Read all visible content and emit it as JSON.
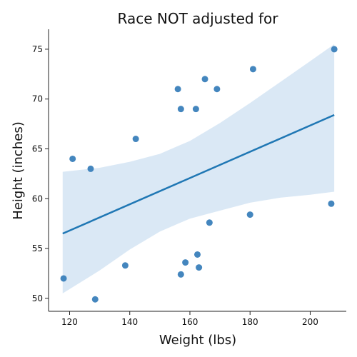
{
  "chart_data": {
    "type": "scatter",
    "title": "Race NOT adjusted for",
    "xlabel": "Weight (lbs)",
    "ylabel": "Height (inches)",
    "xlim": [
      113,
      212
    ],
    "ylim": [
      48.7,
      77
    ],
    "xticks": [
      120,
      140,
      160,
      180,
      200
    ],
    "yticks": [
      50,
      55,
      60,
      65,
      70,
      75
    ],
    "grid": false,
    "colors": {
      "points": "#3a7fba",
      "line": "#1f77b4",
      "band": "#c6dbef"
    },
    "points": [
      {
        "x": 118,
        "y": 52
      },
      {
        "x": 121,
        "y": 64
      },
      {
        "x": 127,
        "y": 63
      },
      {
        "x": 128.5,
        "y": 49.9
      },
      {
        "x": 138.5,
        "y": 53.3
      },
      {
        "x": 142,
        "y": 66
      },
      {
        "x": 156,
        "y": 71
      },
      {
        "x": 157,
        "y": 69
      },
      {
        "x": 157,
        "y": 52.4
      },
      {
        "x": 158.5,
        "y": 53.6
      },
      {
        "x": 162,
        "y": 69
      },
      {
        "x": 162.5,
        "y": 54.4
      },
      {
        "x": 163,
        "y": 53.1
      },
      {
        "x": 165,
        "y": 72
      },
      {
        "x": 166.5,
        "y": 57.6
      },
      {
        "x": 169,
        "y": 71
      },
      {
        "x": 180,
        "y": 58.4
      },
      {
        "x": 181,
        "y": 73
      },
      {
        "x": 207,
        "y": 59.5
      },
      {
        "x": 208,
        "y": 75
      }
    ],
    "regression": {
      "x": [
        117.7,
        208
      ],
      "y": [
        56.5,
        68.4
      ]
    },
    "confidence_band": {
      "x": [
        117.7,
        130,
        140,
        150,
        160,
        170,
        180,
        190,
        200,
        208
      ],
      "upper": [
        62.7,
        63.1,
        63.7,
        64.5,
        65.8,
        67.6,
        69.6,
        71.7,
        73.8,
        75.5
      ],
      "lower": [
        50.5,
        52.8,
        54.9,
        56.7,
        58.0,
        58.8,
        59.6,
        60.1,
        60.4,
        60.7
      ]
    }
  }
}
